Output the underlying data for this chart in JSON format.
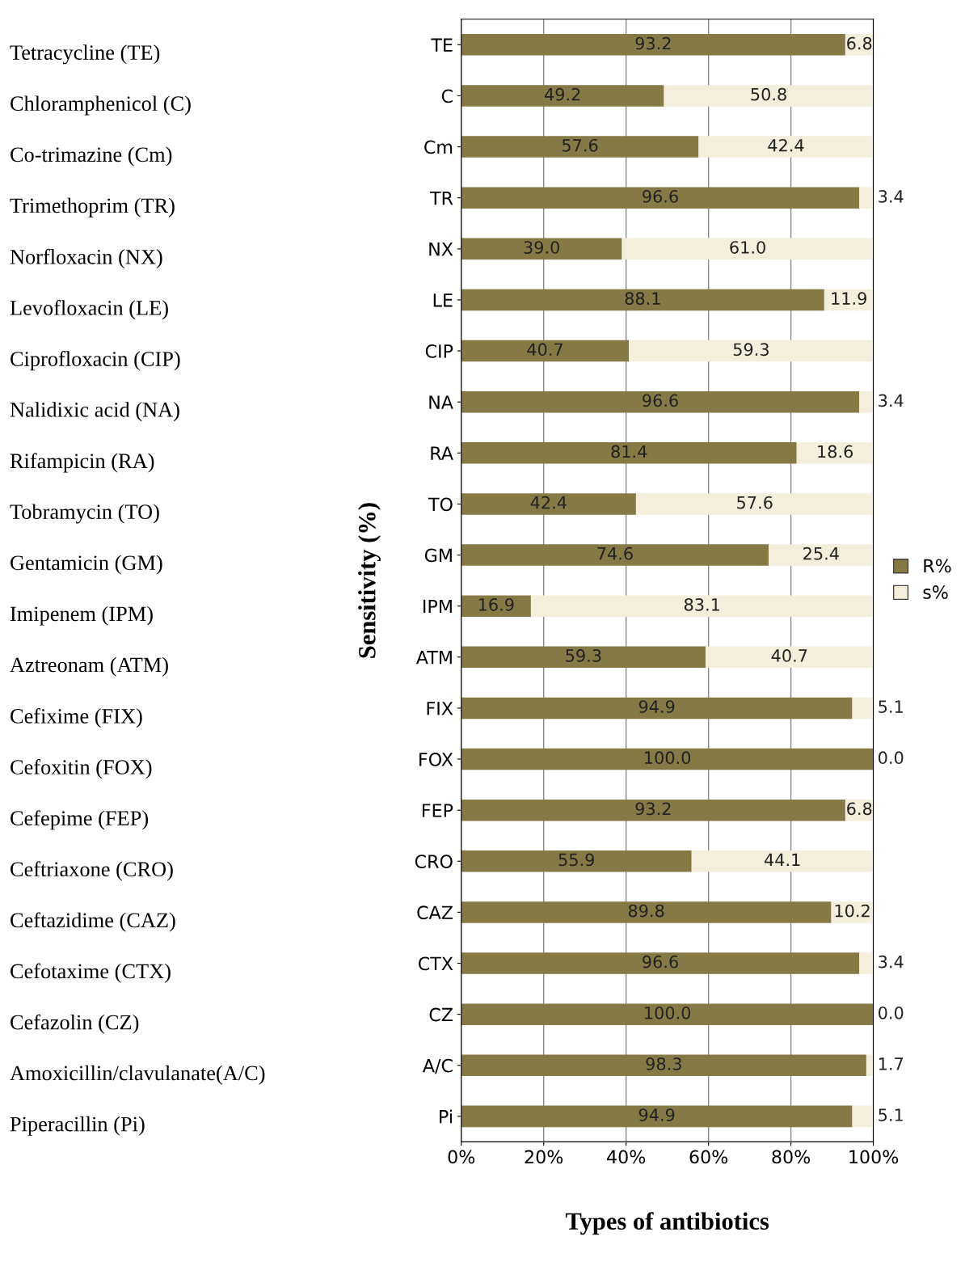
{
  "chart_data": {
    "type": "bar",
    "orientation": "horizontal",
    "stacked": true,
    "xlabel": "Types of antibiotics",
    "ylabel": "Sensitivity (%)",
    "categories": [
      "TE",
      "C",
      "Cm",
      "TR",
      "NX",
      "LE",
      "CIP",
      "NA",
      "RA",
      "TO",
      "GM",
      "IPM",
      "ATM",
      "FIX",
      "FOX",
      "FEP",
      "CRO",
      "CAZ",
      "CTX",
      "CZ",
      "A/C",
      "Pi"
    ],
    "series": [
      {
        "name": "R%",
        "color": "#857a45",
        "values": [
          93.2,
          49.2,
          57.6,
          96.6,
          39.0,
          88.1,
          40.7,
          96.6,
          81.4,
          42.4,
          74.6,
          16.9,
          59.3,
          94.9,
          100.0,
          93.2,
          55.9,
          89.8,
          96.6,
          100.0,
          98.3,
          94.9
        ],
        "value_labels": [
          "93.2",
          "49.2",
          "57.6",
          "96.6",
          "39.0",
          "88.1",
          "40.7",
          "96.6",
          "81.4",
          "42.4",
          "74.6",
          "16.9",
          "59.3",
          "94.9",
          "100.0",
          "93.2",
          "55.9",
          "89.8",
          "96.6",
          "100.0",
          "98.3",
          "94.9"
        ]
      },
      {
        "name": "s%",
        "color": "#f3efdc",
        "values": [
          6.8,
          50.8,
          42.4,
          3.4,
          61.0,
          11.9,
          59.3,
          3.4,
          18.6,
          57.6,
          25.4,
          83.1,
          40.7,
          5.1,
          0.0,
          6.8,
          44.1,
          10.2,
          3.4,
          0.0,
          1.7,
          5.1
        ],
        "value_labels": [
          "6.8",
          "50.8",
          "42.4",
          "3.4",
          "61.0",
          "11.9",
          "59.3",
          "3.4",
          "18.6",
          "57.6",
          "25.4",
          "83.1",
          "40.7",
          "5.1",
          "0.0",
          "6.8",
          "44.1",
          "10.2",
          "3.4",
          "0.0",
          "1.7",
          "5.1"
        ]
      }
    ],
    "xlim": [
      0,
      100
    ],
    "xticks": [
      {
        "value": 0,
        "label": "0%"
      },
      {
        "value": 20,
        "label": "20%"
      },
      {
        "value": 40,
        "label": "40%"
      },
      {
        "value": 60,
        "label": "60%"
      },
      {
        "value": 80,
        "label": "80%"
      },
      {
        "value": 100,
        "label": "100%"
      }
    ],
    "grid": "x",
    "legend": "right",
    "annotations": [
      "Tetracycline (TE)",
      "Chloramphenicol (C)",
      "Co-trimazine (Cm)",
      "Trimethoprim (TR)",
      "Norfloxacin (NX)",
      "Levofloxacin (LE)",
      "Ciprofloxacin (CIP)",
      "Nalidixic acid (NA)",
      "Rifampicin (RA)",
      "Tobramycin (TO)",
      "Gentamicin (GM)",
      "Imipenem (IPM)",
      "Aztreonam (ATM)",
      "Cefixime (FIX)",
      "Cefoxitin (FOX)",
      "Cefepime (FEP)",
      "Ceftriaxone (CRO)",
      "Ceftazidime (CAZ)",
      "Cefotaxime (CTX)",
      "Cefazolin (CZ)",
      "Amoxicillin/clavulanate(A/C)",
      "Piperacillin (Pi)"
    ]
  }
}
